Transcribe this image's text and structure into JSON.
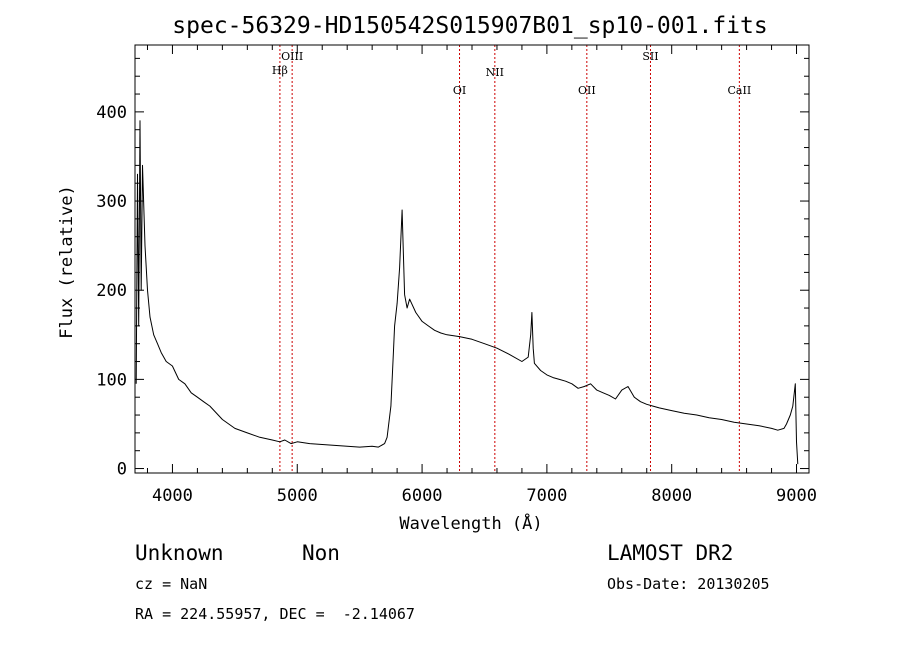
{
  "chart_data": {
    "type": "line",
    "title": "spec-56329-HD150542S015907B01_sp10-001.fits",
    "xlabel": "Wavelength (Å)",
    "ylabel": "Flux (relative)",
    "xlim": [
      3700,
      9100
    ],
    "ylim": [
      -5,
      475
    ],
    "x_ticks": [
      4000,
      5000,
      6000,
      7000,
      8000,
      9000
    ],
    "y_ticks": [
      0,
      100,
      200,
      300,
      400
    ],
    "grid": false,
    "line_color": "#000000",
    "series": [
      {
        "x": [
          3710,
          3720,
          3730,
          3740,
          3750,
          3760,
          3780,
          3800,
          3820,
          3850,
          3880,
          3910,
          3950,
          4000,
          4050,
          4100,
          4150,
          4200,
          4250,
          4300,
          4400,
          4500,
          4600,
          4700,
          4800,
          4860,
          4900,
          4950,
          5000,
          5100,
          5200,
          5300,
          5400,
          5500,
          5600,
          5650,
          5700,
          5720,
          5750,
          5770,
          5780,
          5800,
          5820,
          5840,
          5850,
          5860,
          5880,
          5900,
          5950,
          6000,
          6050,
          6100,
          6150,
          6200,
          6300,
          6400,
          6500,
          6600,
          6700,
          6800,
          6850,
          6870,
          6880,
          6890,
          6900,
          6950,
          7000,
          7050,
          7100,
          7150,
          7200,
          7250,
          7300,
          7350,
          7400,
          7450,
          7500,
          7550,
          7600,
          7650,
          7700,
          7750,
          7800,
          7850,
          7900,
          8000,
          8100,
          8200,
          8300,
          8400,
          8500,
          8600,
          8700,
          8800,
          8850,
          8900,
          8920,
          8950,
          8970,
          8990,
          9000,
          9010
        ],
        "y": [
          95,
          330,
          160,
          390,
          200,
          340,
          250,
          200,
          170,
          150,
          140,
          130,
          120,
          115,
          100,
          95,
          85,
          80,
          75,
          70,
          55,
          45,
          40,
          35,
          32,
          30,
          32,
          28,
          30,
          28,
          27,
          26,
          25,
          24,
          25,
          24,
          28,
          35,
          70,
          130,
          160,
          185,
          225,
          290,
          240,
          195,
          180,
          190,
          175,
          165,
          160,
          155,
          152,
          150,
          148,
          145,
          140,
          135,
          128,
          120,
          125,
          150,
          175,
          135,
          118,
          110,
          105,
          102,
          100,
          98,
          95,
          90,
          92,
          95,
          88,
          85,
          82,
          78,
          88,
          92,
          80,
          75,
          72,
          70,
          68,
          65,
          62,
          60,
          57,
          55,
          52,
          50,
          48,
          45,
          43,
          45,
          50,
          60,
          70,
          95,
          30,
          5
        ]
      }
    ],
    "annotations": {
      "lines_color": "#cc0000",
      "lines": [
        {
          "label": "Hβ",
          "x": 4861
        },
        {
          "label": "OIII",
          "x": 4959
        },
        {
          "label": "OI",
          "x": 6300
        },
        {
          "label": "NII",
          "x": 6583
        },
        {
          "label": "OII",
          "x": 7320
        },
        {
          "label": "SII",
          "x": 7830
        },
        {
          "label": "CaII",
          "x": 8542
        }
      ]
    }
  },
  "footer": {
    "object_class": "Unknown",
    "object_subclass": "Non",
    "survey": "LAMOST DR2",
    "cz": "cz = NaN",
    "obs_date": "Obs-Date: 20130205",
    "coords": "RA = 224.55957, DEC =  -2.14067"
  }
}
